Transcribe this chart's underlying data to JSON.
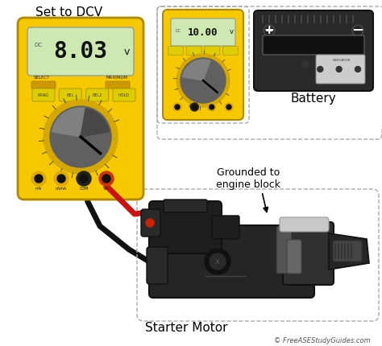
{
  "bg_color": "#f5f5f5",
  "labels": {
    "set_to_dcv": "Set to DCV",
    "battery": "Battery",
    "grounded": "Grounded to\nengine block",
    "starter_motor": "Starter Motor",
    "copyright": "© FreeASEStudyGuides.com",
    "reading_main": "8.03",
    "reading_small": "10.00",
    "v_unit": "v"
  },
  "colors": {
    "yellow_meter": "#F5C800",
    "yellow_mid": "#D4A800",
    "yellow_dark": "#B08800",
    "red_wire": "#CC1111",
    "black_wire": "#111111",
    "starter_body": "#252525",
    "starter_mid": "#303030",
    "starter_light": "#484848",
    "battery_body": "#2a2a2a",
    "display_bg": "#cde8b0",
    "display_border": "#999999",
    "text_dark": "#111111",
    "text_black": "#000000",
    "border_dashed": "#aaaaaa",
    "white": "#ffffff",
    "gray_knob": "#606060",
    "gray_light": "#909090",
    "gray_med": "#555555",
    "outer_bg": "#ffffff"
  }
}
